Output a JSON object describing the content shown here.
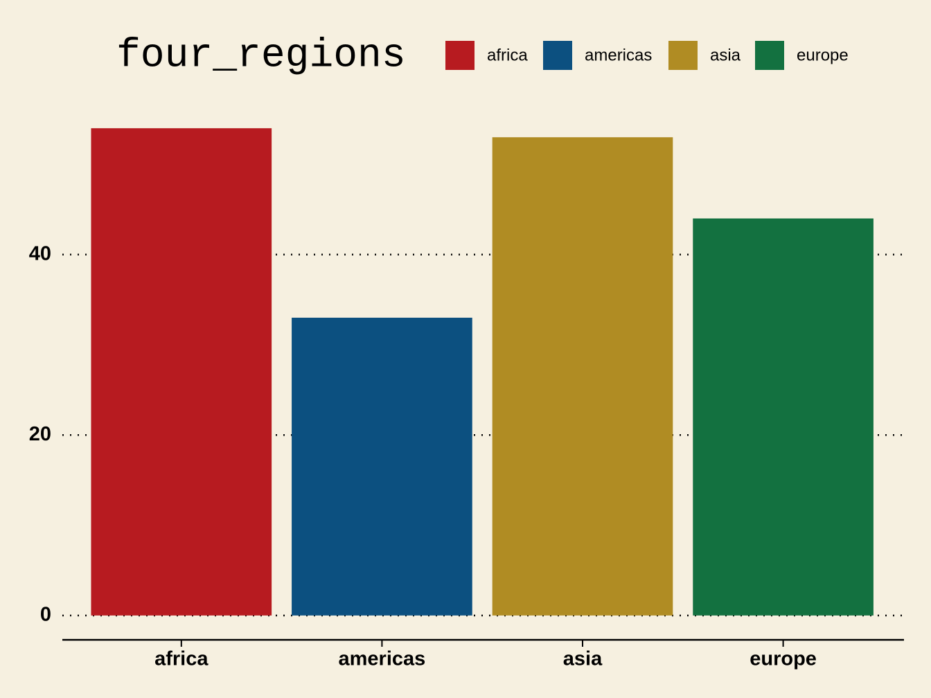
{
  "chart_data": {
    "type": "bar",
    "categories": [
      "africa",
      "americas",
      "asia",
      "europe"
    ],
    "values": [
      54,
      33,
      53,
      44
    ],
    "colors": [
      "#b71b20",
      "#0c5080",
      "#b08c23",
      "#137140"
    ],
    "ylim": [
      -2.7,
      56.7
    ],
    "yticks": [
      0,
      20,
      40
    ],
    "grid": true,
    "legend": {
      "title": "four_regions",
      "position": "top"
    }
  }
}
